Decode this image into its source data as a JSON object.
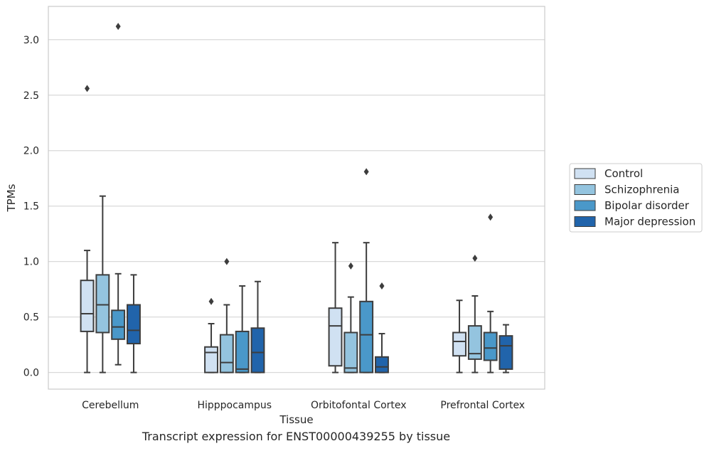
{
  "caption": "Transcript expression for ENST00000439255 by tissue",
  "chart_data": {
    "type": "boxplot",
    "xlabel": "Tissue",
    "ylabel": "TPMs",
    "ylim": [
      -0.15,
      3.3
    ],
    "yticks": [
      0.0,
      0.5,
      1.0,
      1.5,
      2.0,
      2.5,
      3.0
    ],
    "ytick_labels": [
      "0.0",
      "0.5",
      "1.0",
      "1.5",
      "2.0",
      "2.5",
      "3.0"
    ],
    "grid": "horizontal",
    "legend_position": "right",
    "categories": [
      "Cerebellum",
      "Hipppocampus",
      "Orbitofontal Cortex",
      "Prefrontal Cortex"
    ],
    "series": [
      {
        "name": "Control",
        "color": "#d0e1f2",
        "boxes": [
          {
            "whislo": 0.0,
            "q1": 0.37,
            "med": 0.53,
            "q3": 0.83,
            "whishi": 1.1,
            "fliers": [
              2.56
            ]
          },
          {
            "whislo": 0.0,
            "q1": 0.0,
            "med": 0.18,
            "q3": 0.23,
            "whishi": 0.44,
            "fliers": [
              0.64
            ]
          },
          {
            "whislo": 0.0,
            "q1": 0.06,
            "med": 0.42,
            "q3": 0.58,
            "whishi": 1.17,
            "fliers": []
          },
          {
            "whislo": 0.0,
            "q1": 0.15,
            "med": 0.28,
            "q3": 0.36,
            "whishi": 0.65,
            "fliers": []
          }
        ]
      },
      {
        "name": "Schizophrenia",
        "color": "#94c4df",
        "boxes": [
          {
            "whislo": 0.0,
            "q1": 0.36,
            "med": 0.61,
            "q3": 0.88,
            "whishi": 1.59,
            "fliers": []
          },
          {
            "whislo": 0.0,
            "q1": 0.0,
            "med": 0.09,
            "q3": 0.34,
            "whishi": 0.61,
            "fliers": [
              1.0
            ]
          },
          {
            "whislo": 0.0,
            "q1": 0.0,
            "med": 0.04,
            "q3": 0.36,
            "whishi": 0.68,
            "fliers": [
              0.96
            ]
          },
          {
            "whislo": 0.0,
            "q1": 0.12,
            "med": 0.17,
            "q3": 0.42,
            "whishi": 0.69,
            "fliers": [
              1.03
            ]
          }
        ]
      },
      {
        "name": "Bipolar disorder",
        "color": "#4a98c9",
        "boxes": [
          {
            "whislo": 0.07,
            "q1": 0.3,
            "med": 0.41,
            "q3": 0.56,
            "whishi": 0.89,
            "fliers": [
              3.12
            ]
          },
          {
            "whislo": 0.0,
            "q1": 0.0,
            "med": 0.03,
            "q3": 0.37,
            "whishi": 0.78,
            "fliers": []
          },
          {
            "whislo": 0.0,
            "q1": 0.0,
            "med": 0.34,
            "q3": 0.64,
            "whishi": 1.17,
            "fliers": [
              1.81
            ]
          },
          {
            "whislo": 0.0,
            "q1": 0.11,
            "med": 0.22,
            "q3": 0.36,
            "whishi": 0.55,
            "fliers": [
              1.4
            ]
          }
        ]
      },
      {
        "name": "Major depression",
        "color": "#2164ab",
        "boxes": [
          {
            "whislo": 0.0,
            "q1": 0.26,
            "med": 0.38,
            "q3": 0.61,
            "whishi": 0.88,
            "fliers": []
          },
          {
            "whislo": 0.0,
            "q1": 0.0,
            "med": 0.18,
            "q3": 0.4,
            "whishi": 0.82,
            "fliers": []
          },
          {
            "whislo": 0.0,
            "q1": 0.0,
            "med": 0.05,
            "q3": 0.14,
            "whishi": 0.35,
            "fliers": [
              0.78
            ]
          },
          {
            "whislo": 0.0,
            "q1": 0.03,
            "med": 0.24,
            "q3": 0.33,
            "whishi": 0.43,
            "fliers": []
          }
        ]
      }
    ]
  }
}
